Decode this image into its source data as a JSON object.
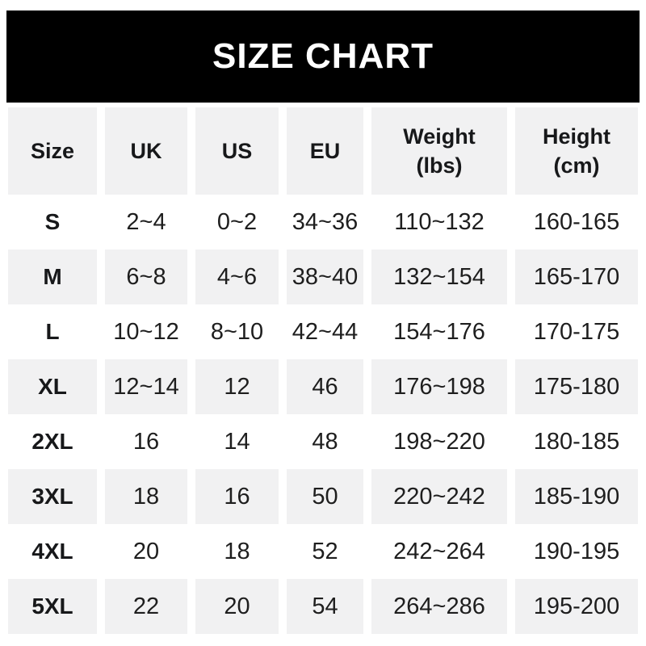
{
  "banner": {
    "title": "SIZE CHART",
    "bg_color": "#000000",
    "text_color": "#ffffff"
  },
  "chart_data": {
    "type": "table",
    "title": "SIZE CHART",
    "columns": [
      "Size",
      "UK",
      "US",
      "EU",
      "Weight\n(lbs)",
      "Height\n(cm)"
    ],
    "rows": [
      [
        "S",
        "2~4",
        "0~2",
        "34~36",
        "110~132",
        "160-165"
      ],
      [
        "M",
        "6~8",
        "4~6",
        "38~40",
        "132~154",
        "165-170"
      ],
      [
        "L",
        "10~12",
        "8~10",
        "42~44",
        "154~176",
        "170-175"
      ],
      [
        "XL",
        "12~14",
        "12",
        "46",
        "176~198",
        "175-180"
      ],
      [
        "2XL",
        "16",
        "14",
        "48",
        "198~220",
        "180-185"
      ],
      [
        "3XL",
        "18",
        "16",
        "50",
        "220~242",
        "185-190"
      ],
      [
        "4XL",
        "20",
        "18",
        "52",
        "242~264",
        "190-195"
      ],
      [
        "5XL",
        "22",
        "20",
        "54",
        "264~286",
        "195-200"
      ]
    ],
    "layout": {
      "striping": "header row and rows M, XL, 3XL, 5XL shaded light gray; others white",
      "row_alt_bg": "#f1f1f2",
      "row_bg": "#ffffff",
      "text_color": "#1e1e1e",
      "banner_bg": "#000000",
      "banner_text": "#ffffff",
      "weight_range_separator": "~",
      "height_range_separator": "-"
    }
  }
}
